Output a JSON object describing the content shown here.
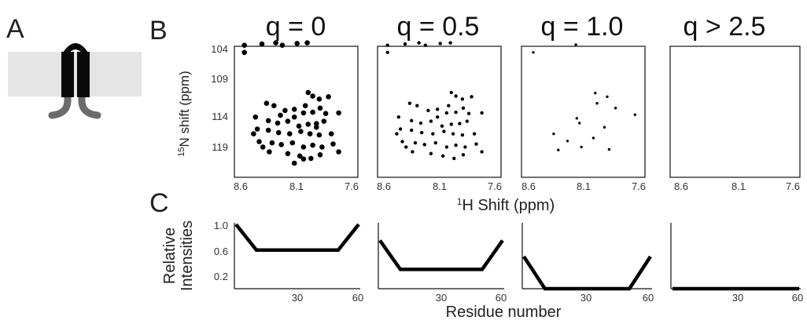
{
  "figure": {
    "panel_labels": {
      "a": "A",
      "b": "B",
      "c": "C"
    },
    "membrane_color": "#e5e5e5",
    "protein_color": "#0a0a0a",
    "tail_color": "#6b6b6b"
  },
  "chart_data": [
    {
      "type": "scatter",
      "panel": "B",
      "series": [
        {
          "title": "q = 0",
          "points": [
            [
              8.74,
              102.3
            ],
            [
              8.74,
              103.5
            ],
            [
              8.55,
              102.1
            ],
            [
              8.4,
              101.9
            ],
            [
              8.33,
              102.3
            ],
            [
              8.17,
              102.0
            ],
            [
              8.06,
              101.9
            ],
            [
              8.05,
              110.2
            ],
            [
              8.0,
              110.8
            ],
            [
              7.93,
              111.3
            ],
            [
              7.83,
              110.9
            ],
            [
              8.08,
              112.4
            ],
            [
              7.92,
              112.8
            ],
            [
              8.5,
              112.0
            ],
            [
              8.42,
              112.4
            ],
            [
              8.3,
              113.2
            ],
            [
              8.2,
              113.0
            ],
            [
              8.1,
              113.6
            ],
            [
              8.0,
              113.5
            ],
            [
              7.86,
              113.7
            ],
            [
              7.72,
              113.6
            ],
            [
              8.62,
              114.3
            ],
            [
              8.48,
              114.9
            ],
            [
              8.38,
              115.3
            ],
            [
              8.27,
              115.0
            ],
            [
              8.2,
              114.3
            ],
            [
              8.15,
              115.8
            ],
            [
              8.05,
              115.5
            ],
            [
              7.96,
              115.4
            ],
            [
              7.88,
              115.0
            ],
            [
              8.6,
              116.3
            ],
            [
              8.48,
              116.5
            ],
            [
              8.37,
              116.9
            ],
            [
              8.25,
              117.1
            ],
            [
              8.13,
              116.7
            ],
            [
              8.03,
              117.1
            ],
            [
              7.93,
              117.3
            ],
            [
              7.8,
              117.1
            ],
            [
              8.58,
              118.4
            ],
            [
              8.44,
              118.6
            ],
            [
              8.34,
              118.9
            ],
            [
              8.22,
              118.6
            ],
            [
              8.1,
              119.3
            ],
            [
              8.0,
              119.0
            ],
            [
              7.9,
              119.3
            ],
            [
              7.78,
              118.8
            ],
            [
              8.47,
              120.1
            ],
            [
              8.27,
              120.4
            ],
            [
              8.14,
              120.8
            ],
            [
              8.02,
              121.2
            ],
            [
              7.92,
              120.6
            ],
            [
              7.72,
              120.1
            ],
            [
              8.64,
              117.1
            ],
            [
              8.54,
              119.3
            ],
            [
              8.2,
              122.0
            ],
            [
              8.1,
              121.3
            ],
            [
              7.96,
              116.0
            ],
            [
              8.35,
              114.0
            ]
          ]
        },
        {
          "title": "q = 0.5",
          "points": [
            [
              8.74,
              102.3
            ],
            [
              8.74,
              103.5
            ],
            [
              8.55,
              102.1
            ],
            [
              8.4,
              101.9
            ],
            [
              8.33,
              102.3
            ],
            [
              8.17,
              102.0
            ],
            [
              8.06,
              101.9
            ],
            [
              8.05,
              110.2
            ],
            [
              8.0,
              110.8
            ],
            [
              7.93,
              111.3
            ],
            [
              7.83,
              110.9
            ],
            [
              8.08,
              112.4
            ],
            [
              7.92,
              112.8
            ],
            [
              8.5,
              112.0
            ],
            [
              8.42,
              112.4
            ],
            [
              8.3,
              113.2
            ],
            [
              8.2,
              113.0
            ],
            [
              8.1,
              113.6
            ],
            [
              8.0,
              113.5
            ],
            [
              7.86,
              113.7
            ],
            [
              7.72,
              113.6
            ],
            [
              8.62,
              114.3
            ],
            [
              8.48,
              114.9
            ],
            [
              8.38,
              115.3
            ],
            [
              8.27,
              115.0
            ],
            [
              8.2,
              114.3
            ],
            [
              8.15,
              115.8
            ],
            [
              8.05,
              115.5
            ],
            [
              7.96,
              115.4
            ],
            [
              7.88,
              115.0
            ],
            [
              8.6,
              116.3
            ],
            [
              8.48,
              116.5
            ],
            [
              8.37,
              116.9
            ],
            [
              8.25,
              117.1
            ],
            [
              8.13,
              116.7
            ],
            [
              8.03,
              117.1
            ],
            [
              7.93,
              117.3
            ],
            [
              7.8,
              117.1
            ],
            [
              8.58,
              118.4
            ],
            [
              8.44,
              118.6
            ],
            [
              8.34,
              118.9
            ],
            [
              8.22,
              118.6
            ],
            [
              8.1,
              119.3
            ],
            [
              8.0,
              119.0
            ],
            [
              7.9,
              119.3
            ],
            [
              7.78,
              118.8
            ],
            [
              8.47,
              120.1
            ],
            [
              8.27,
              120.4
            ],
            [
              8.14,
              120.8
            ],
            [
              8.02,
              121.2
            ],
            [
              7.92,
              120.6
            ],
            [
              7.72,
              120.1
            ],
            [
              8.64,
              117.1
            ],
            [
              8.54,
              119.3
            ]
          ]
        },
        {
          "title": "q = 1.0",
          "points": [
            [
              8.72,
              103.5
            ],
            [
              8.26,
              102.2
            ],
            [
              8.05,
              110.3
            ],
            [
              7.92,
              110.9
            ],
            [
              8.03,
              112.0
            ],
            [
              7.83,
              112.8
            ],
            [
              8.25,
              114.5
            ],
            [
              8.22,
              115.3
            ],
            [
              7.62,
              113.9
            ],
            [
              8.5,
              117.1
            ],
            [
              7.95,
              116.0
            ],
            [
              8.35,
              118.3
            ],
            [
              8.07,
              117.8
            ],
            [
              8.2,
              119.3
            ],
            [
              8.45,
              119.8
            ],
            [
              7.9,
              119.7
            ]
          ]
        },
        {
          "title": "q > 2.5",
          "points": []
        }
      ],
      "xlabel": "1H Shift (ppm)",
      "xlabel_sup": "1",
      "xlabel_rest": "H Shift (ppm)",
      "ylabel_sup": "15",
      "ylabel_rest": "N shift (ppm)",
      "x_range": [
        8.78,
        7.58
      ],
      "y_range": [
        103.0,
        122.0
      ],
      "x_ticks": [
        "8.6",
        "8.1",
        "7.6"
      ],
      "x_tick_values": [
        8.6,
        8.1,
        7.6
      ],
      "y_ticks": [
        "104",
        "109",
        "114",
        "119"
      ],
      "y_tick_values": [
        104,
        109,
        114,
        119
      ],
      "x_axis_reversed": true,
      "y_axis_reversed": true
    },
    {
      "type": "line",
      "panel": "C",
      "series": [
        {
          "x": [
            0,
            10,
            50,
            60
          ],
          "y": [
            1.0,
            0.6,
            0.6,
            1.0
          ]
        },
        {
          "x": [
            0,
            10,
            50,
            60
          ],
          "y": [
            0.75,
            0.3,
            0.3,
            0.75
          ]
        },
        {
          "x": [
            0,
            10,
            50,
            60
          ],
          "y": [
            0.5,
            0.0,
            0.0,
            0.5
          ]
        },
        {
          "x": [
            0,
            60
          ],
          "y": [
            0.0,
            0.0
          ]
        }
      ],
      "xlabel": "Residue number",
      "ylabel_line1": "Relative",
      "ylabel_line2": "Intensities",
      "x_range": [
        0,
        60
      ],
      "y_range": [
        0,
        1.0
      ],
      "x_ticks": [
        "30",
        "60"
      ],
      "x_tick_values": [
        30,
        60
      ],
      "y_ticks": [
        "1.0",
        "0.6",
        "0.2"
      ],
      "y_tick_values": [
        1.0,
        0.6,
        0.2
      ]
    }
  ]
}
